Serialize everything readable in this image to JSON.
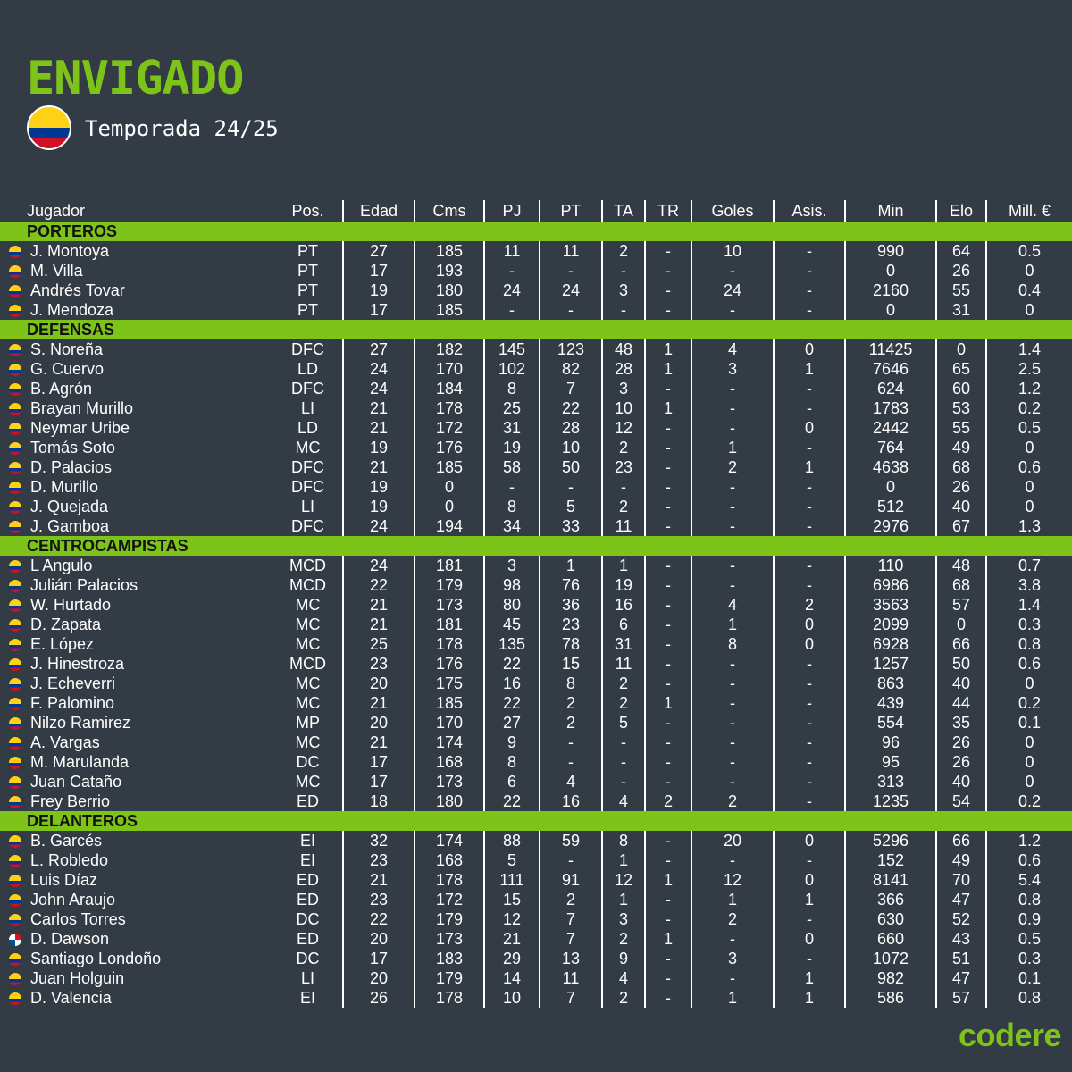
{
  "header": {
    "team": "ENVIGADO",
    "season": "Temporada 24/25",
    "flag_icon": "colombia-flag-icon"
  },
  "colors": {
    "accent": "#7ec31a",
    "background": "#333b44"
  },
  "columns": [
    "Jugador",
    "Pos.",
    "Edad",
    "Cms",
    "PJ",
    "PT",
    "TA",
    "TR",
    "Goles",
    "Asis.",
    "Min",
    "Elo",
    "Mill. €"
  ],
  "sections": [
    {
      "name": "PORTEROS",
      "players": [
        {
          "flag": "co",
          "cells": [
            "J. Montoya",
            "PT",
            "27",
            "185",
            "11",
            "11",
            "2",
            "-",
            "10",
            "-",
            "990",
            "64",
            "0.5"
          ]
        },
        {
          "flag": "co",
          "cells": [
            "M. Villa",
            "PT",
            "17",
            "193",
            "-",
            "-",
            "-",
            "-",
            "-",
            "-",
            "0",
            "26",
            "0"
          ]
        },
        {
          "flag": "co",
          "cells": [
            "Andrés Tovar",
            "PT",
            "19",
            "180",
            "24",
            "24",
            "3",
            "-",
            "24",
            "-",
            "2160",
            "55",
            "0.4"
          ]
        },
        {
          "flag": "co",
          "cells": [
            "J. Mendoza",
            "PT",
            "17",
            "185",
            "-",
            "-",
            "-",
            "-",
            "-",
            "-",
            "0",
            "31",
            "0"
          ]
        }
      ]
    },
    {
      "name": "DEFENSAS",
      "players": [
        {
          "flag": "co",
          "cells": [
            "S. Noreña",
            "DFC",
            "27",
            "182",
            "145",
            "123",
            "48",
            "1",
            "4",
            "0",
            "11425",
            "0",
            "1.4"
          ]
        },
        {
          "flag": "co",
          "cells": [
            "G. Cuervo",
            "LD",
            "24",
            "170",
            "102",
            "82",
            "28",
            "1",
            "3",
            "1",
            "7646",
            "65",
            "2.5"
          ]
        },
        {
          "flag": "co",
          "cells": [
            "B. Agrón",
            "DFC",
            "24",
            "184",
            "8",
            "7",
            "3",
            "-",
            "-",
            "-",
            "624",
            "60",
            "1.2"
          ]
        },
        {
          "flag": "co",
          "cells": [
            "Brayan Murillo",
            "LI",
            "21",
            "178",
            "25",
            "22",
            "10",
            "1",
            "-",
            "-",
            "1783",
            "53",
            "0.2"
          ]
        },
        {
          "flag": "co",
          "cells": [
            "Neymar Uribe",
            "LD",
            "21",
            "172",
            "31",
            "28",
            "12",
            "-",
            "-",
            "0",
            "2442",
            "55",
            "0.5"
          ]
        },
        {
          "flag": "co",
          "cells": [
            "Tomás Soto",
            "MC",
            "19",
            "176",
            "19",
            "10",
            "2",
            "-",
            "1",
            "-",
            "764",
            "49",
            "0"
          ]
        },
        {
          "flag": "co",
          "cells": [
            "D. Palacios",
            "DFC",
            "21",
            "185",
            "58",
            "50",
            "23",
            "-",
            "2",
            "1",
            "4638",
            "68",
            "0.6"
          ]
        },
        {
          "flag": "co",
          "cells": [
            "D. Murillo",
            "DFC",
            "19",
            "0",
            "-",
            "-",
            "-",
            "-",
            "-",
            "-",
            "0",
            "26",
            "0"
          ]
        },
        {
          "flag": "co",
          "cells": [
            "J. Quejada",
            "LI",
            "19",
            "0",
            "8",
            "5",
            "2",
            "-",
            "-",
            "-",
            "512",
            "40",
            "0"
          ]
        },
        {
          "flag": "co",
          "cells": [
            "J. Gamboa",
            "DFC",
            "24",
            "194",
            "34",
            "33",
            "11",
            "-",
            "-",
            "-",
            "2976",
            "67",
            "1.3"
          ]
        }
      ]
    },
    {
      "name": "CENTROCAMPISTAS",
      "players": [
        {
          "flag": "co",
          "cells": [
            "L Angulo",
            "MCD",
            "24",
            "181",
            "3",
            "1",
            "1",
            "-",
            "-",
            "-",
            "110",
            "48",
            "0.7"
          ]
        },
        {
          "flag": "co",
          "cells": [
            "Julián Palacios",
            "MCD",
            "22",
            "179",
            "98",
            "76",
            "19",
            "-",
            "-",
            "-",
            "6986",
            "68",
            "3.8"
          ]
        },
        {
          "flag": "co",
          "cells": [
            "W. Hurtado",
            "MC",
            "21",
            "173",
            "80",
            "36",
            "16",
            "-",
            "4",
            "2",
            "3563",
            "57",
            "1.4"
          ]
        },
        {
          "flag": "co",
          "cells": [
            "D. Zapata",
            "MC",
            "21",
            "181",
            "45",
            "23",
            "6",
            "-",
            "1",
            "0",
            "2099",
            "0",
            "0.3"
          ]
        },
        {
          "flag": "co",
          "cells": [
            "E. López",
            "MC",
            "25",
            "178",
            "135",
            "78",
            "31",
            "-",
            "8",
            "0",
            "6928",
            "66",
            "0.8"
          ]
        },
        {
          "flag": "co",
          "cells": [
            "J. Hinestroza",
            "MCD",
            "23",
            "176",
            "22",
            "15",
            "11",
            "-",
            "-",
            "-",
            "1257",
            "50",
            "0.6"
          ]
        },
        {
          "flag": "co",
          "cells": [
            "J. Echeverri",
            "MC",
            "20",
            "175",
            "16",
            "8",
            "2",
            "-",
            "-",
            "-",
            "863",
            "40",
            "0"
          ]
        },
        {
          "flag": "co",
          "cells": [
            "F. Palomino",
            "MC",
            "21",
            "185",
            "22",
            "2",
            "2",
            "1",
            "-",
            "-",
            "439",
            "44",
            "0.2"
          ]
        },
        {
          "flag": "co",
          "cells": [
            "Nilzo Ramirez",
            "MP",
            "20",
            "170",
            "27",
            "2",
            "5",
            "-",
            "-",
            "-",
            "554",
            "35",
            "0.1"
          ]
        },
        {
          "flag": "co",
          "cells": [
            "A. Vargas",
            "MC",
            "21",
            "174",
            "9",
            "-",
            "-",
            "-",
            "-",
            "-",
            "96",
            "26",
            "0"
          ]
        },
        {
          "flag": "co",
          "cells": [
            "M. Marulanda",
            "DC",
            "17",
            "168",
            "8",
            "-",
            "-",
            "-",
            "-",
            "-",
            "95",
            "26",
            "0"
          ]
        },
        {
          "flag": "co",
          "cells": [
            "Juan Cataño",
            "MC",
            "17",
            "173",
            "6",
            "4",
            "-",
            "-",
            "-",
            "-",
            "313",
            "40",
            "0"
          ]
        },
        {
          "flag": "co",
          "cells": [
            "Frey Berrio",
            "ED",
            "18",
            "180",
            "22",
            "16",
            "4",
            "2",
            "2",
            "-",
            "1235",
            "54",
            "0.2"
          ]
        }
      ]
    },
    {
      "name": "DELANTEROS",
      "players": [
        {
          "flag": "co",
          "cells": [
            "B. Garcés",
            "EI",
            "32",
            "174",
            "88",
            "59",
            "8",
            "-",
            "20",
            "0",
            "5296",
            "66",
            "1.2"
          ]
        },
        {
          "flag": "co",
          "cells": [
            "L. Robledo",
            "EI",
            "23",
            "168",
            "5",
            "-",
            "1",
            "-",
            "-",
            "-",
            "152",
            "49",
            "0.6"
          ]
        },
        {
          "flag": "co",
          "cells": [
            "Luis Díaz",
            "ED",
            "21",
            "178",
            "111",
            "91",
            "12",
            "1",
            "12",
            "0",
            "8141",
            "70",
            "5.4"
          ]
        },
        {
          "flag": "co",
          "cells": [
            "John Araujo",
            "ED",
            "23",
            "172",
            "15",
            "2",
            "1",
            "-",
            "1",
            "1",
            "366",
            "47",
            "0.8"
          ]
        },
        {
          "flag": "co",
          "cells": [
            "Carlos Torres",
            "DC",
            "22",
            "179",
            "12",
            "7",
            "3",
            "-",
            "2",
            "-",
            "630",
            "52",
            "0.9"
          ]
        },
        {
          "flag": "pa",
          "cells": [
            "D. Dawson",
            "ED",
            "20",
            "173",
            "21",
            "7",
            "2",
            "1",
            "-",
            "0",
            "660",
            "43",
            "0.5"
          ]
        },
        {
          "flag": "co",
          "cells": [
            "Santiago Londoño",
            "DC",
            "17",
            "183",
            "29",
            "13",
            "9",
            "-",
            "3",
            "-",
            "1072",
            "51",
            "0.3"
          ]
        },
        {
          "flag": "co",
          "cells": [
            "Juan Holguin",
            "LI",
            "20",
            "179",
            "14",
            "11",
            "4",
            "-",
            "-",
            "1",
            "982",
            "47",
            "0.1"
          ]
        },
        {
          "flag": "co",
          "cells": [
            "D. Valencia",
            "EI",
            "26",
            "178",
            "10",
            "7",
            "2",
            "-",
            "1",
            "1",
            "586",
            "57",
            "0.8"
          ]
        }
      ]
    }
  ],
  "footer": {
    "brand": "codere"
  }
}
